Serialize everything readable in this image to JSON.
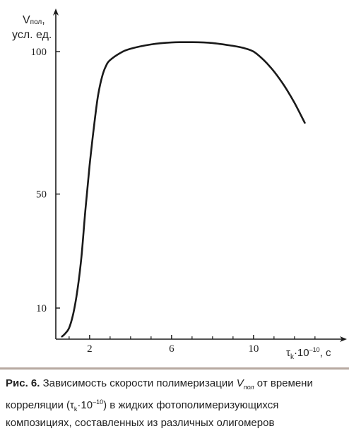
{
  "chart_data": {
    "type": "line",
    "xlabel": {
      "symbol": "τ",
      "subscript": "k",
      "factor": "·10",
      "exponent": "–10",
      "unit": ", с"
    },
    "ylabel": {
      "symbol": "V",
      "subscript": "пол",
      "suffix": ",",
      "line2": "усл. ед."
    },
    "xticks": [
      2,
      6,
      10
    ],
    "yticks": [
      10,
      50,
      100
    ],
    "xlim": [
      0.5,
      13.5
    ],
    "ylim": [
      0,
      115
    ],
    "grid": false,
    "series": [
      {
        "x": [
          0.65,
          0.8,
          1.0,
          1.2,
          1.4,
          1.6,
          1.8,
          2.0,
          2.2,
          2.4,
          2.6,
          2.8,
          3.0,
          3.5,
          4.0,
          5.0,
          6.0,
          7.0,
          8.0,
          9.0,
          9.5,
          10.0,
          10.5,
          11.0,
          11.5,
          12.0,
          12.5
        ],
        "y": [
          0,
          1,
          3,
          8,
          16,
          28,
          45,
          60,
          73,
          84,
          91,
          95,
          97,
          99.5,
          101,
          102.5,
          103.2,
          103.3,
          103,
          102,
          101.3,
          100,
          97,
          93,
          88,
          82,
          75
        ]
      }
    ]
  },
  "caption": {
    "label": "Рис. 6.",
    "text_before": " Зависимость скорости полимеризации ",
    "v_symbol": "V",
    "v_subscript": "пол",
    "text_middle": " от времени корреляции (τ",
    "tau_subscript": "k",
    "tau_factor": "·10",
    "tau_exponent": "–10",
    "text_after": ") в жидких фотополимеризующихся композициях, составленных из различных олигомеров"
  }
}
